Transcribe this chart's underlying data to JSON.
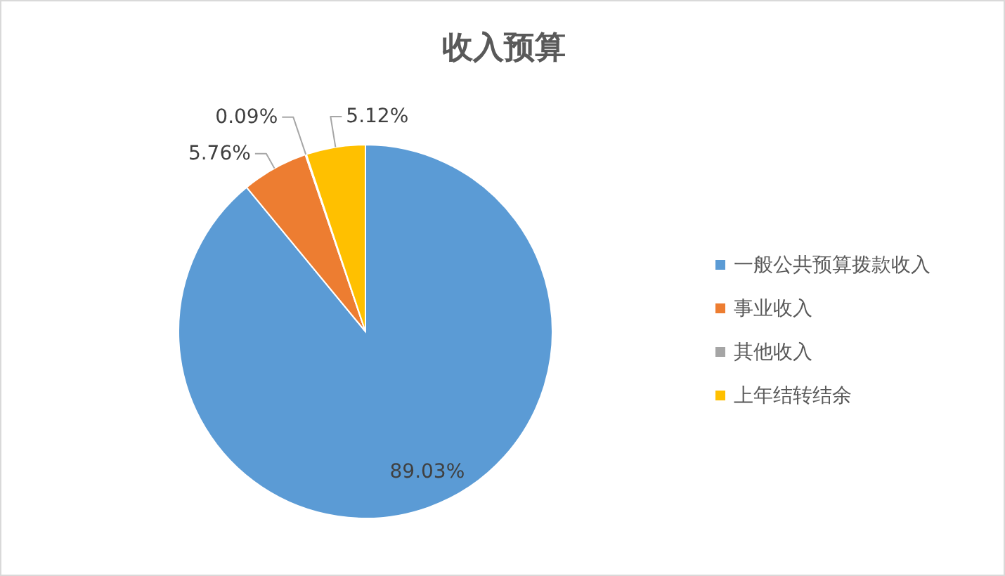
{
  "chart_data": {
    "type": "pie",
    "title": "收入预算",
    "categories": [
      "一般公共预算拨款收入",
      "事业收入",
      "其他收入",
      "上年结转结余"
    ],
    "values": [
      89.03,
      5.76,
      0.09,
      5.12
    ],
    "colors": [
      "#5b9bd5",
      "#ed7d31",
      "#a5a5a5",
      "#ffc000"
    ],
    "value_labels": [
      "89.03%",
      "5.76%",
      "0.09%",
      "5.12%"
    ],
    "legend": "right"
  }
}
